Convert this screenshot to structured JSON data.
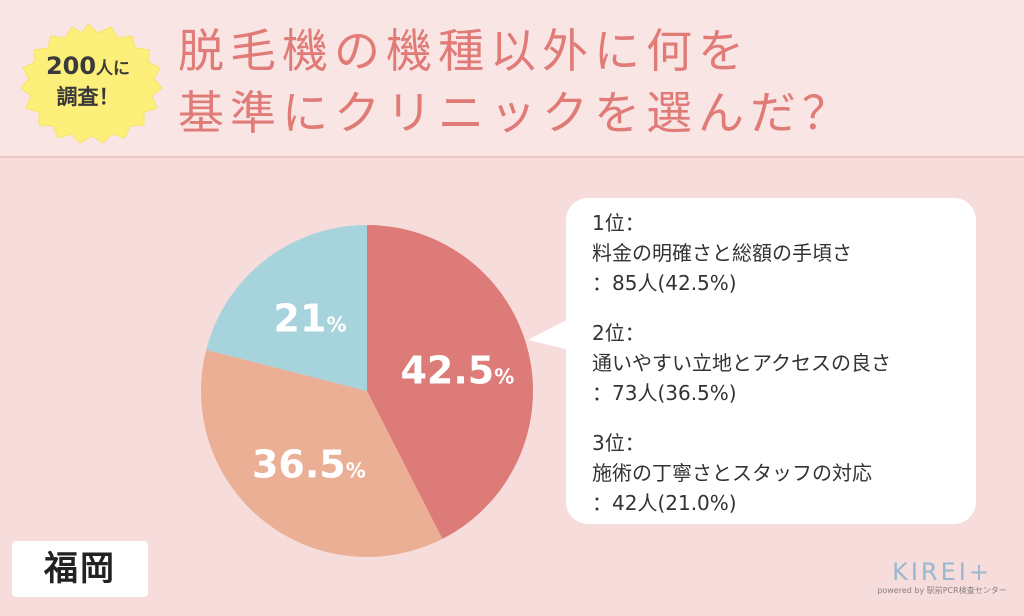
{
  "badge": {
    "line1_num": "200",
    "line1_suffix": "人に",
    "line2": "調査！"
  },
  "title": {
    "line1": "脱毛機の機種以外に何を",
    "line2": "基準にクリニックを選んだ？"
  },
  "colors": {
    "title": "#e07b78",
    "slice1": "#dd7b78",
    "slice2": "#eaaf94",
    "slice3": "#a7d3dd",
    "background": "#f6dcdb"
  },
  "chart_data": {
    "type": "pie",
    "slices": [
      {
        "label": "42.5",
        "value": 42.5,
        "color": "#dd7b78"
      },
      {
        "label": "36.5",
        "value": 36.5,
        "color": "#eaaf94"
      },
      {
        "label": "21",
        "value": 21.0,
        "color": "#a7d3dd"
      }
    ],
    "percent_unit": "%"
  },
  "ranking": [
    {
      "rank": "1位：",
      "item": "料金の明確さと総額の手頃さ",
      "count": "：85人(42.5%)"
    },
    {
      "rank": "2位：",
      "item": "通いやすい立地とアクセスの良さ",
      "count": "：73人(36.5%)"
    },
    {
      "rank": "3位：",
      "item": "施術の丁寧さとスタッフの対応",
      "count": "：42人(21.0%)"
    }
  ],
  "location": "福岡",
  "logo": {
    "main": "KIREI+",
    "sub": "powered by 駅前PCR検査センター"
  }
}
